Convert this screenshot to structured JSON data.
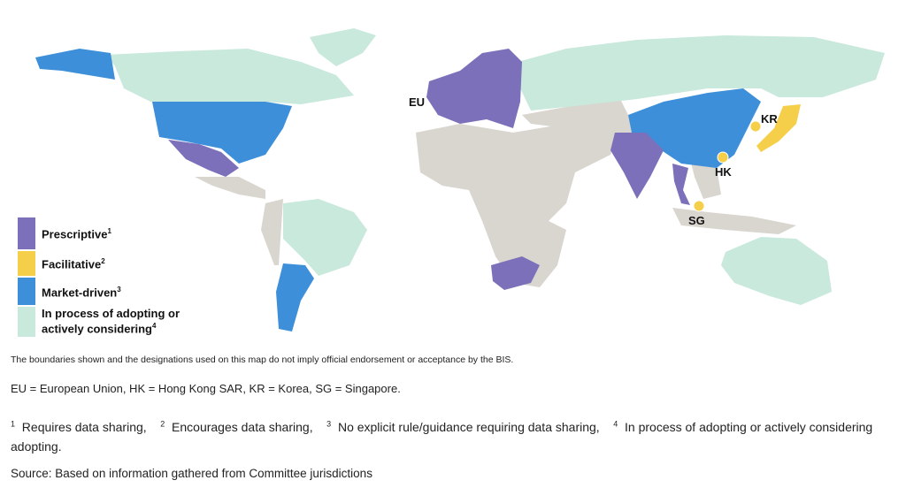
{
  "legend": [
    {
      "label": "Prescriptive",
      "note": "1",
      "color": "#7b70b9"
    },
    {
      "label": "Facilitative",
      "note": "2",
      "color": "#f6cf4a"
    },
    {
      "label": "Market-driven",
      "note": "3",
      "color": "#3d8fd9"
    },
    {
      "label": "In process of adopting or actively considering",
      "note": "4",
      "color": "#c8e9db"
    }
  ],
  "land_color": "#d9d5cf",
  "map_labels": [
    "EU",
    "HK",
    "KR",
    "SG"
  ],
  "disclaimer": "The boundaries shown and the designations used on this map do not imply official endorsement or acceptance by the BIS.",
  "abbreviations": "EU = European Union, HK = Hong Kong SAR, KR = Korea, SG = Singapore.",
  "footnotes": [
    {
      "mark": "1",
      "text": "Requires data sharing,"
    },
    {
      "mark": "2",
      "text": "Encourages data sharing,"
    },
    {
      "mark": "3",
      "text": "No explicit rule/guidance requiring data sharing,"
    },
    {
      "mark": "4",
      "text": "In process of adopting or actively considering adopting."
    }
  ],
  "source": "Source: Based on information gathered from Committee jurisdictions"
}
